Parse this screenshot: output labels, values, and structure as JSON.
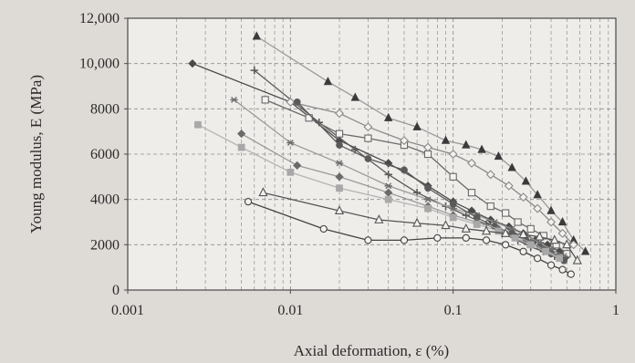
{
  "chart_data": {
    "type": "scatter",
    "title": "",
    "xlabel": "Axial deformation, ε (%)",
    "ylabel": "Young modulus, E (MPa)",
    "x_scale": "log",
    "xlim": [
      0.001,
      1
    ],
    "ylim": [
      0,
      12000
    ],
    "grid": true,
    "x_ticks": [
      {
        "value": 0.001,
        "label": "0.001"
      },
      {
        "value": 0.01,
        "label": "0.01"
      },
      {
        "value": 0.1,
        "label": "0.1"
      },
      {
        "value": 1,
        "label": "1"
      }
    ],
    "y_ticks": [
      {
        "value": 0,
        "label": "0"
      },
      {
        "value": 2000,
        "label": "2000"
      },
      {
        "value": 4000,
        "label": "4000"
      },
      {
        "value": 6000,
        "label": "6000"
      },
      {
        "value": 8000,
        "label": "8000"
      },
      {
        "value": 10000,
        "label": "10,000"
      },
      {
        "value": 12000,
        "label": "12,000"
      }
    ],
    "colors": {
      "dark": "#4a4a4a",
      "mid": "#7a7a7a",
      "light": "#a6a6a6"
    },
    "series": [
      {
        "marker": "triangle",
        "fill": "#3a3a3a",
        "line": "#9a9a9a",
        "x": [
          0.0062,
          0.017,
          0.025,
          0.04,
          0.06,
          0.09,
          0.12,
          0.15,
          0.19,
          0.23,
          0.28,
          0.33,
          0.4,
          0.47,
          0.55,
          0.65
        ],
        "y": [
          11200,
          9200,
          8500,
          7600,
          7200,
          6600,
          6400,
          6200,
          5900,
          5400,
          4800,
          4200,
          3500,
          3000,
          2200,
          1700
        ]
      },
      {
        "marker": "diamond",
        "fill": "#4a4a4a",
        "line": "#4a4a4a",
        "x": [
          0.0025,
          0.01,
          0.02,
          0.04,
          0.07,
          0.1,
          0.13,
          0.17,
          0.22,
          0.27,
          0.32,
          0.38,
          0.45,
          0.5
        ],
        "y": [
          10000,
          8300,
          6600,
          5600,
          4600,
          3900,
          3500,
          3100,
          2800,
          2500,
          2200,
          2000,
          1700,
          1500
        ]
      },
      {
        "marker": "plus",
        "fill": "#5a5a5a",
        "line": "#5a5a5a",
        "x": [
          0.006,
          0.015,
          0.025,
          0.04,
          0.06,
          0.09,
          0.12,
          0.16,
          0.2,
          0.25,
          0.3,
          0.36,
          0.42
        ],
        "y": [
          9700,
          7400,
          6200,
          5100,
          4300,
          3700,
          3300,
          2900,
          2500,
          2200,
          1900,
          1700,
          1500
        ]
      },
      {
        "marker": "square-open",
        "fill": "#f2f2f2",
        "line": "#6a6a6a",
        "x": [
          0.007,
          0.013,
          0.02,
          0.03,
          0.05,
          0.07,
          0.1,
          0.13,
          0.17,
          0.21,
          0.25,
          0.3,
          0.36,
          0.43,
          0.5
        ],
        "y": [
          8400,
          7600,
          6900,
          6700,
          6400,
          6000,
          5000,
          4300,
          3700,
          3400,
          3000,
          2700,
          2400,
          2000,
          1600
        ]
      },
      {
        "marker": "diamond-open",
        "fill": "#f2f2f2",
        "line": "#8a8a8a",
        "x": [
          0.01,
          0.02,
          0.03,
          0.05,
          0.07,
          0.1,
          0.13,
          0.17,
          0.22,
          0.27,
          0.33,
          0.4,
          0.47,
          0.55
        ],
        "y": [
          8300,
          7800,
          7200,
          6600,
          6300,
          6000,
          5600,
          5100,
          4600,
          4100,
          3600,
          3000,
          2500,
          2000
        ]
      },
      {
        "marker": "star",
        "fill": "#6e6e6e",
        "line": "#9a9a9a",
        "x": [
          0.0045,
          0.01,
          0.02,
          0.04,
          0.07,
          0.1,
          0.14,
          0.18,
          0.23,
          0.28,
          0.34,
          0.4,
          0.48
        ],
        "y": [
          8400,
          6500,
          5600,
          4600,
          4000,
          3600,
          3300,
          3000,
          2700,
          2400,
          2100,
          1800,
          1500
        ]
      },
      {
        "marker": "circle",
        "fill": "#5a5a5a",
        "line": "#5a5a5a",
        "x": [
          0.011,
          0.02,
          0.03,
          0.05,
          0.07,
          0.1,
          0.14,
          0.18,
          0.23,
          0.28,
          0.34,
          0.4,
          0.48
        ],
        "y": [
          8300,
          6400,
          5800,
          5300,
          4500,
          3800,
          3200,
          2800,
          2500,
          2200,
          1900,
          1600,
          1300
        ]
      },
      {
        "marker": "diamond",
        "fill": "#6a6a6a",
        "line": "#9a9a9a",
        "x": [
          0.005,
          0.011,
          0.02,
          0.04,
          0.07,
          0.1,
          0.14,
          0.19,
          0.24,
          0.3,
          0.36,
          0.44
        ],
        "y": [
          6900,
          5500,
          5000,
          4300,
          3700,
          3300,
          3000,
          2700,
          2400,
          2100,
          1800,
          1500
        ]
      },
      {
        "marker": "square",
        "fill": "#a8a8a8",
        "line": "#b4b4b4",
        "x": [
          0.0027,
          0.005,
          0.01,
          0.02,
          0.04,
          0.07,
          0.1,
          0.14,
          0.19,
          0.24,
          0.3,
          0.37,
          0.45
        ],
        "y": [
          7300,
          6300,
          5200,
          4500,
          4000,
          3600,
          3200,
          2900,
          2600,
          2300,
          2000,
          1700,
          1400
        ]
      },
      {
        "marker": "triangle-open",
        "fill": "#f2f2f2",
        "line": "#555555",
        "x": [
          0.0068,
          0.02,
          0.035,
          0.06,
          0.09,
          0.12,
          0.16,
          0.21,
          0.27,
          0.34,
          0.42,
          0.5,
          0.58
        ],
        "y": [
          4300,
          3500,
          3100,
          2950,
          2850,
          2700,
          2600,
          2500,
          2450,
          2350,
          2200,
          2000,
          1300
        ]
      },
      {
        "marker": "circle-open",
        "fill": "#f2f2f2",
        "line": "#444444",
        "x": [
          0.0055,
          0.016,
          0.03,
          0.05,
          0.08,
          0.12,
          0.16,
          0.21,
          0.27,
          0.33,
          0.4,
          0.47,
          0.53
        ],
        "y": [
          3900,
          2700,
          2200,
          2200,
          2300,
          2300,
          2200,
          2000,
          1700,
          1400,
          1100,
          900,
          700
        ]
      }
    ]
  }
}
